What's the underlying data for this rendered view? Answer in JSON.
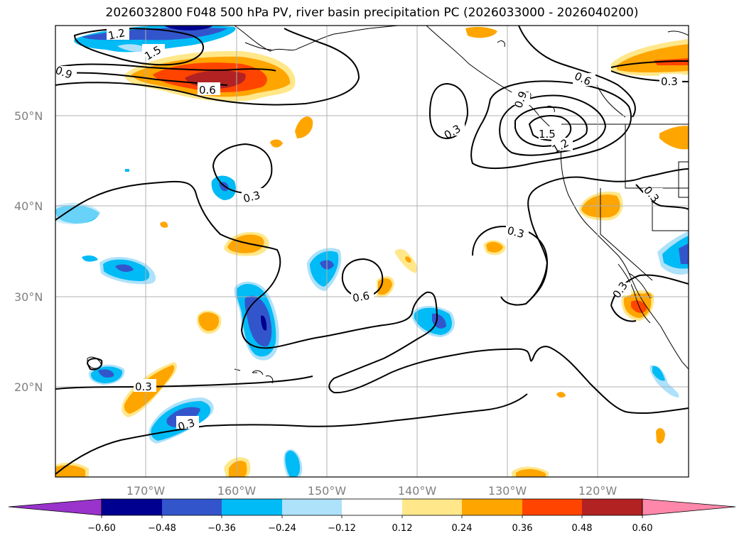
{
  "title": "2026032800 F048 500 hPa PV, river basin precipitation PC (2026033000 - 2026040200)",
  "axes": {
    "lat_labels": [
      "50°N",
      "40°N",
      "30°N",
      "20°N"
    ],
    "lon_labels": [
      "170°W",
      "160°W",
      "150°W",
      "140°W",
      "130°W",
      "120°W"
    ]
  },
  "colorbar": {
    "ticks": [
      "−0.60",
      "−0.48",
      "−0.36",
      "−0.24",
      "−0.12",
      "0.12",
      "0.24",
      "0.36",
      "0.48",
      "0.60"
    ],
    "under_color": "#9933cc",
    "over_color": "#ff88aa",
    "colors": [
      "#000090",
      "#3355cc",
      "#00bbf5",
      "#aee1fa",
      "#ffffff",
      "#ffe78a",
      "#ffa500",
      "#ff4400",
      "#b22222"
    ]
  },
  "contour_labels": [
    {
      "id": "c-1.2",
      "text": "1.2"
    },
    {
      "id": "c-1.5a",
      "text": "1.5"
    },
    {
      "id": "c-0.9",
      "text": "0.9"
    },
    {
      "id": "c-0.6a",
      "text": "0.6"
    },
    {
      "id": "c-0.6b",
      "text": "0.6"
    },
    {
      "id": "c-0.3a",
      "text": "0.3"
    },
    {
      "id": "c-0.3b",
      "text": "0.3"
    },
    {
      "id": "c-0.3c",
      "text": "0.3"
    },
    {
      "id": "c-0.3d",
      "text": "0.3"
    },
    {
      "id": "c-0.6c",
      "text": "0.6"
    },
    {
      "id": "c-0.3e",
      "text": "0.3"
    },
    {
      "id": "c-0.3f",
      "text": "0.3"
    },
    {
      "id": "c-0.3g",
      "text": "0.3"
    },
    {
      "id": "c-0.3h",
      "text": "0.3"
    },
    {
      "id": "c-1.5b",
      "text": "1.5"
    },
    {
      "id": "c-1.2b",
      "text": "1.2"
    },
    {
      "id": "c-0.9b",
      "text": "0.9"
    },
    {
      "id": "c-0.3i",
      "text": "0.3"
    }
  ]
}
